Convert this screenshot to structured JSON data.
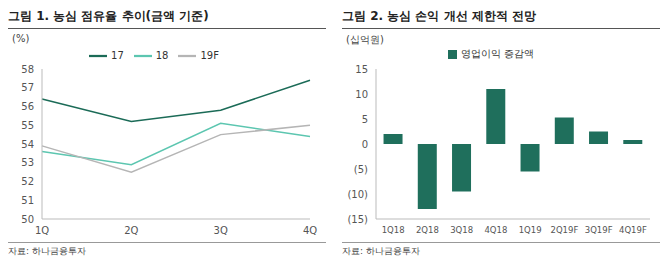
{
  "chart_data": [
    {
      "type": "line",
      "title": "그림 1. 농심 점유율 추이(금액 기준)",
      "ylabel": "(%)",
      "source": "자료: 하나금융투자",
      "categories": [
        "1Q",
        "2Q",
        "3Q",
        "4Q"
      ],
      "series": [
        {
          "name": "17",
          "color": "#1b6b57",
          "values": [
            56.4,
            55.2,
            55.8,
            57.4
          ]
        },
        {
          "name": "18",
          "color": "#5cc6b0",
          "values": [
            53.6,
            52.9,
            55.1,
            54.4
          ]
        },
        {
          "name": "19F",
          "color": "#b5b5b5",
          "values": [
            53.9,
            52.5,
            54.5,
            55.0
          ]
        }
      ],
      "ylim": [
        50,
        58
      ],
      "yticks": [
        50,
        51,
        52,
        53,
        54,
        55,
        56,
        57,
        58
      ],
      "grid": false,
      "legend": "top",
      "marker": "none"
    },
    {
      "type": "bar",
      "title": "그림 2. 농심 손익 개선 제한적 전망",
      "ylabel": "(십억원)",
      "source": "자료: 하나금융투자",
      "categories": [
        "1Q18",
        "2Q18",
        "3Q18",
        "4Q18",
        "1Q19",
        "2Q19F",
        "3Q19F",
        "4Q19F"
      ],
      "series": [
        {
          "name": "영업이익 증감액",
          "color": "#1f6f5c",
          "values": [
            2,
            -13,
            -9.5,
            11,
            -5.5,
            5.3,
            2.5,
            0.8
          ]
        }
      ],
      "ylim": [
        -15,
        15
      ],
      "yticks": [
        {
          "value": -15,
          "label": "(15)"
        },
        {
          "value": -10,
          "label": "(10)"
        },
        {
          "value": -5,
          "label": "(5)"
        },
        0,
        5,
        10,
        15
      ],
      "grid": false,
      "legend": "top"
    }
  ]
}
